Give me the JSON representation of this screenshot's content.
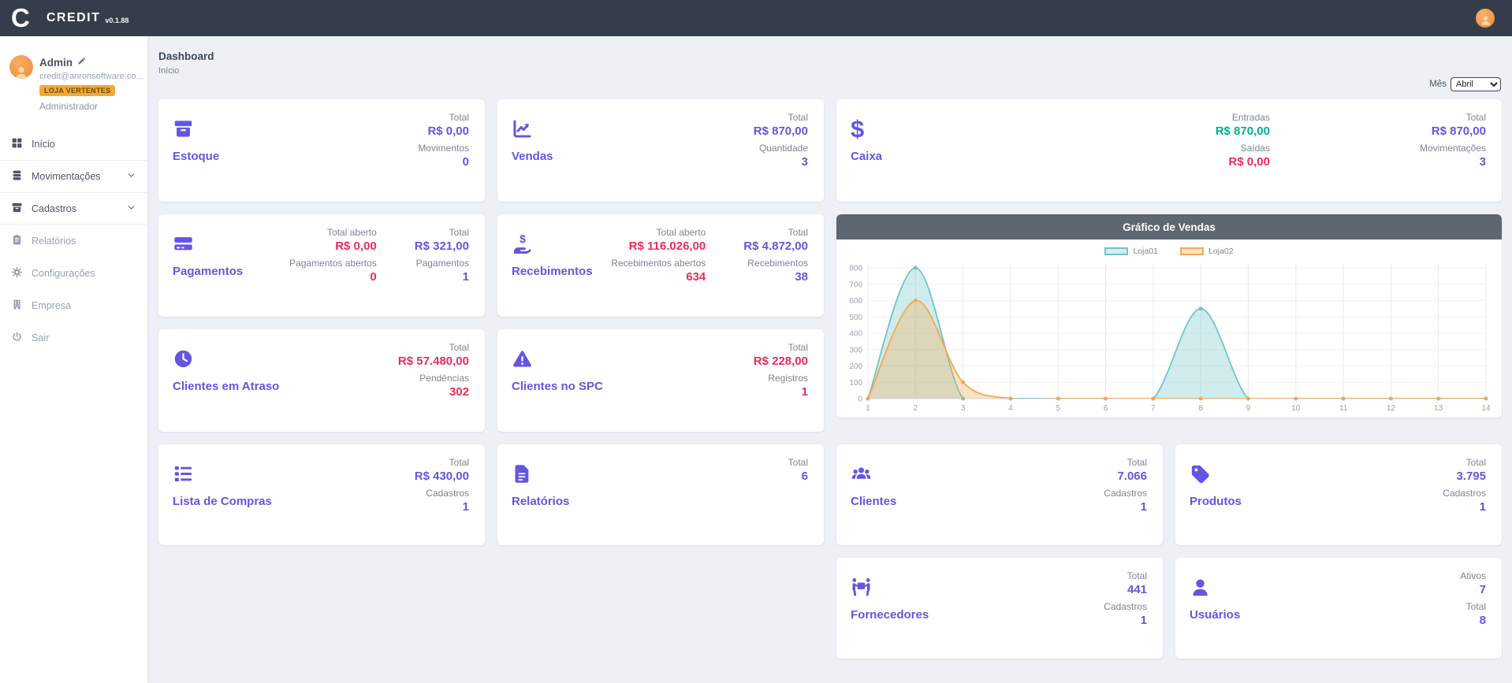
{
  "topbar": {
    "logo": "C",
    "brand": "CREDIT",
    "version": "v0.1.88"
  },
  "sidebar": {
    "user": {
      "name": "Admin",
      "email": "credit@anronsoftware.co...",
      "badge": "LOJA VERTENTES",
      "role": "Administrador"
    },
    "items": [
      {
        "label": "Início",
        "icon": "grid",
        "strong": true,
        "expandable": false
      },
      {
        "label": "Movimentações",
        "icon": "database",
        "strong": true,
        "expandable": true
      },
      {
        "label": "Cadastros",
        "icon": "box",
        "strong": true,
        "expandable": true
      },
      {
        "label": "Relatórios",
        "icon": "clipboard",
        "strong": false,
        "expandable": false
      },
      {
        "label": "Configurações",
        "icon": "gear",
        "strong": false,
        "expandable": false
      },
      {
        "label": "Empresa",
        "icon": "building",
        "strong": false,
        "expandable": false
      },
      {
        "label": "Sair",
        "icon": "power",
        "strong": false,
        "expandable": false
      }
    ]
  },
  "page_header": {
    "title": "Dashboard",
    "subtitle": "Início"
  },
  "filter": {
    "label": "Mês",
    "selected": "Abril"
  },
  "cards": [
    {
      "id": "estoque",
      "title": "Estoque",
      "icon": "box-solid",
      "groups": [
        [
          {
            "label": "Total",
            "value": "R$ 0,00",
            "color": "purple"
          },
          {
            "label": "Movimentos",
            "value": "0",
            "color": "purple"
          }
        ]
      ]
    },
    {
      "id": "vendas",
      "title": "Vendas",
      "icon": "chart-line",
      "groups": [
        [
          {
            "label": "Total",
            "value": "R$ 870,00",
            "color": "purple"
          },
          {
            "label": "Quantidade",
            "value": "3",
            "color": "purple"
          }
        ]
      ]
    },
    {
      "id": "caixa",
      "title": "Caixa",
      "icon": "dollar",
      "wide": true,
      "groups": [
        [
          {
            "label": "Entradas",
            "value": "R$ 870,00",
            "color": "green"
          },
          {
            "label": "Saídas",
            "value": "R$ 0,00",
            "color": "red"
          }
        ],
        [
          {
            "label": "Total",
            "value": "R$ 870,00",
            "color": "purple"
          },
          {
            "label": "Movimentações",
            "value": "3",
            "color": "purple"
          }
        ]
      ]
    },
    {
      "id": "pagamentos",
      "title": "Pagamentos",
      "icon": "credit-card",
      "groups": [
        [
          {
            "label": "Total aberto",
            "value": "R$ 0,00",
            "color": "red"
          },
          {
            "label": "Pagamentos abertos",
            "value": "0",
            "color": "red"
          }
        ],
        [
          {
            "label": "Total",
            "value": "R$ 321,00",
            "color": "purple"
          },
          {
            "label": "Pagamentos",
            "value": "1",
            "color": "purple"
          }
        ]
      ]
    },
    {
      "id": "recebimentos",
      "title": "Recebimentos",
      "icon": "hand-dollar",
      "groups": [
        [
          {
            "label": "Total aberto",
            "value": "R$ 116.026,00",
            "color": "red"
          },
          {
            "label": "Recebimentos abertos",
            "value": "634",
            "color": "red"
          }
        ],
        [
          {
            "label": "Total",
            "value": "R$ 4.872,00",
            "color": "purple"
          },
          {
            "label": "Recebimentos",
            "value": "38",
            "color": "purple"
          }
        ]
      ]
    },
    {
      "id": "clientes-atraso",
      "title": "Clientes em Atraso",
      "icon": "clock",
      "groups": [
        [
          {
            "label": "Total",
            "value": "R$ 57.480,00",
            "color": "red"
          },
          {
            "label": "Pendências",
            "value": "302",
            "color": "red"
          }
        ]
      ]
    },
    {
      "id": "clientes-spc",
      "title": "Clientes no SPC",
      "icon": "warning",
      "groups": [
        [
          {
            "label": "Total",
            "value": "R$ 228,00",
            "color": "red"
          },
          {
            "label": "Registros",
            "value": "1",
            "color": "red"
          }
        ]
      ]
    },
    {
      "id": "lista-compras",
      "title": "Lista de Compras",
      "icon": "list",
      "groups": [
        [
          {
            "label": "Total",
            "value": "R$ 430,00",
            "color": "purple"
          },
          {
            "label": "Cadastros",
            "value": "1",
            "color": "purple"
          }
        ]
      ]
    },
    {
      "id": "relatorios",
      "title": "Relatórios",
      "icon": "file",
      "groups": [
        [
          {
            "label": "Total",
            "value": "6",
            "color": "purple"
          }
        ]
      ]
    },
    {
      "id": "clientes",
      "title": "Clientes",
      "icon": "users",
      "groups": [
        [
          {
            "label": "Total",
            "value": "7.066",
            "color": "purple"
          },
          {
            "label": "Cadastros",
            "value": "1",
            "color": "purple"
          }
        ]
      ]
    },
    {
      "id": "produtos",
      "title": "Produtos",
      "icon": "tag",
      "groups": [
        [
          {
            "label": "Total",
            "value": "3.795",
            "color": "purple"
          },
          {
            "label": "Cadastros",
            "value": "1",
            "color": "purple"
          }
        ]
      ]
    },
    {
      "id": "fornecedores",
      "title": "Fornecedores",
      "icon": "people-carry",
      "groups": [
        [
          {
            "label": "Total",
            "value": "441",
            "color": "purple"
          },
          {
            "label": "Cadastros",
            "value": "1",
            "color": "purple"
          }
        ]
      ]
    },
    {
      "id": "usuarios",
      "title": "Usuários",
      "icon": "user",
      "groups": [
        [
          {
            "label": "Ativos",
            "value": "7",
            "color": "purple"
          },
          {
            "label": "Total",
            "value": "8",
            "color": "purple"
          }
        ]
      ]
    }
  ],
  "chart_data": {
    "type": "area",
    "title": "Gráfico de Vendas",
    "x": [
      1,
      2,
      3,
      4,
      5,
      6,
      7,
      8,
      9,
      10,
      11,
      12,
      13,
      14
    ],
    "series": [
      {
        "name": "Loja01",
        "color": "#6fc5c6",
        "values": [
          0,
          800,
          0,
          0,
          0,
          0,
          0,
          550,
          0,
          0,
          0,
          0,
          0,
          0
        ]
      },
      {
        "name": "Loja02",
        "color": "#f3a94f",
        "values": [
          0,
          600,
          100,
          0,
          0,
          0,
          0,
          0,
          0,
          0,
          0,
          0,
          0,
          0
        ]
      }
    ],
    "ylim": [
      0,
      800
    ],
    "yticks": [
      0,
      100,
      200,
      300,
      400,
      500,
      600,
      700,
      800
    ],
    "grid": true,
    "legend_position": "top-center"
  },
  "colors": {
    "accent_purple": "#6456e0",
    "negative_red": "#ea2c5c",
    "positive_green": "#00b192",
    "topbar_bg": "#363d4a",
    "chart_header_bg": "#5e6670",
    "badge_orange": "#f6a832"
  }
}
